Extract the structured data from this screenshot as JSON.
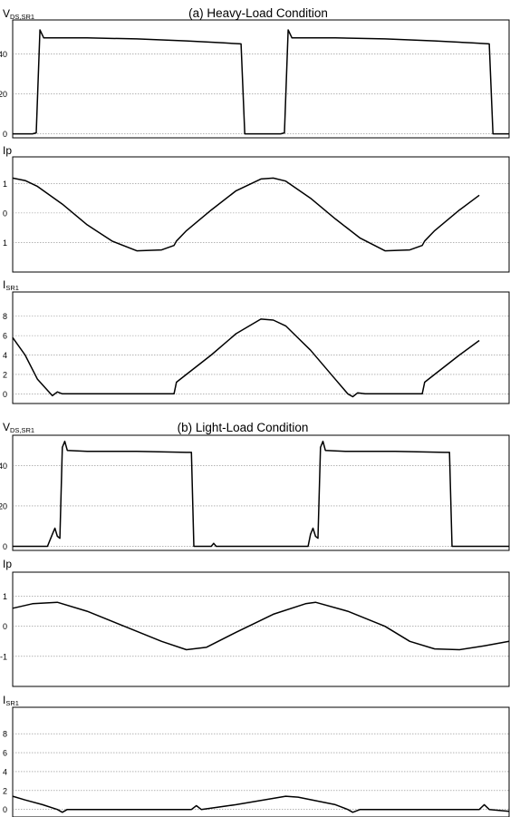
{
  "chart_data": [
    {
      "type": "line",
      "title": "(a) Heavy-Load Condition",
      "ylabel_main": "V",
      "ylabel_sub": "DS,SR1",
      "yticks": [
        {
          "v": 0,
          "label": "0"
        },
        {
          "v": 20,
          "label": "20"
        },
        {
          "v": 40,
          "label": "40"
        }
      ],
      "ylim": [
        -2,
        57
      ],
      "xlim": [
        0,
        2
      ],
      "series": [
        {
          "values": [
            [
              0,
              0
            ],
            [
              0.08,
              0
            ],
            [
              0.095,
              0.5
            ],
            [
              0.11,
              52
            ],
            [
              0.125,
              48
            ],
            [
              0.16,
              48
            ],
            [
              0.3,
              48
            ],
            [
              0.5,
              47.5
            ],
            [
              0.7,
              46.5
            ],
            [
              0.85,
              45.5
            ],
            [
              0.92,
              45
            ],
            [
              0.935,
              0
            ],
            [
              1.0,
              0
            ],
            [
              1.08,
              0
            ],
            [
              1.095,
              0.5
            ],
            [
              1.11,
              52
            ],
            [
              1.125,
              48
            ],
            [
              1.16,
              48
            ],
            [
              1.3,
              48
            ],
            [
              1.5,
              47.5
            ],
            [
              1.7,
              46.5
            ],
            [
              1.85,
              45.5
            ],
            [
              1.92,
              45
            ],
            [
              1.935,
              0
            ],
            [
              2.0,
              0
            ]
          ]
        }
      ]
    },
    {
      "type": "line",
      "ylabel_main": "Ip",
      "ylabel_sub": "",
      "yticks": [
        {
          "v": 1,
          "label": "1"
        },
        {
          "v": 0,
          "label": "0"
        },
        {
          "v": -1,
          "label": "1"
        }
      ],
      "ylim": [
        -2.0,
        1.9
      ],
      "xlim": [
        0,
        2
      ],
      "series": [
        {
          "values": [
            [
              0,
              1.18
            ],
            [
              0.05,
              1.1
            ],
            [
              0.1,
              0.9
            ],
            [
              0.2,
              0.3
            ],
            [
              0.3,
              -0.4
            ],
            [
              0.4,
              -0.95
            ],
            [
              0.5,
              -1.28
            ],
            [
              0.6,
              -1.25
            ],
            [
              0.65,
              -1.1
            ],
            [
              0.66,
              -0.95
            ],
            [
              0.7,
              -0.6
            ],
            [
              0.8,
              0.1
            ],
            [
              0.9,
              0.75
            ],
            [
              1.0,
              1.15
            ],
            [
              1.05,
              1.18
            ],
            [
              1.1,
              1.08
            ],
            [
              1.2,
              0.5
            ],
            [
              1.3,
              -0.2
            ],
            [
              1.4,
              -0.85
            ],
            [
              1.5,
              -1.28
            ],
            [
              1.6,
              -1.25
            ],
            [
              1.65,
              -1.1
            ],
            [
              1.66,
              -0.95
            ],
            [
              1.7,
              -0.6
            ],
            [
              1.8,
              0.1
            ],
            [
              1.88,
              0.6
            ]
          ]
        }
      ]
    },
    {
      "type": "line",
      "ylabel_main": "I",
      "ylabel_sub": "SR1",
      "yticks": [
        {
          "v": 0,
          "label": "0"
        },
        {
          "v": 2,
          "label": "2"
        },
        {
          "v": 4,
          "label": "4"
        },
        {
          "v": 6,
          "label": "6"
        },
        {
          "v": 8,
          "label": "8"
        }
      ],
      "ylim": [
        -1,
        10.5
      ],
      "xlim": [
        0,
        2
      ],
      "series": [
        {
          "values": [
            [
              0,
              5.8
            ],
            [
              0.05,
              4.0
            ],
            [
              0.1,
              1.5
            ],
            [
              0.16,
              -0.2
            ],
            [
              0.18,
              0.2
            ],
            [
              0.2,
              0
            ],
            [
              0.65,
              0
            ],
            [
              0.66,
              1.2
            ],
            [
              0.7,
              2.0
            ],
            [
              0.8,
              4.0
            ],
            [
              0.9,
              6.2
            ],
            [
              1.0,
              7.7
            ],
            [
              1.05,
              7.6
            ],
            [
              1.1,
              7.0
            ],
            [
              1.2,
              4.5
            ],
            [
              1.3,
              1.5
            ],
            [
              1.35,
              0
            ],
            [
              1.37,
              -0.3
            ],
            [
              1.39,
              0.1
            ],
            [
              1.42,
              0
            ],
            [
              1.65,
              0
            ],
            [
              1.66,
              1.2
            ],
            [
              1.7,
              2.0
            ],
            [
              1.8,
              4.0
            ],
            [
              1.88,
              5.5
            ]
          ]
        }
      ]
    },
    {
      "type": "line",
      "title": "(b) Light-Load Condition",
      "ylabel_main": "V",
      "ylabel_sub": "DS,SR1",
      "yticks": [
        {
          "v": 0,
          "label": "0"
        },
        {
          "v": 20,
          "label": "20"
        },
        {
          "v": 40,
          "label": "40"
        }
      ],
      "ylim": [
        -2,
        55
      ],
      "xlim": [
        0,
        2
      ],
      "series": [
        {
          "values": [
            [
              0,
              0
            ],
            [
              0.14,
              0
            ],
            [
              0.16,
              6
            ],
            [
              0.17,
              9
            ],
            [
              0.18,
              5
            ],
            [
              0.19,
              4
            ],
            [
              0.2,
              49
            ],
            [
              0.21,
              52
            ],
            [
              0.22,
              47.5
            ],
            [
              0.3,
              47
            ],
            [
              0.5,
              47
            ],
            [
              0.7,
              46.5
            ],
            [
              0.72,
              46.5
            ],
            [
              0.73,
              0
            ],
            [
              0.8,
              0
            ],
            [
              0.81,
              1.5
            ],
            [
              0.82,
              0
            ],
            [
              1.19,
              0
            ],
            [
              1.2,
              6
            ],
            [
              1.21,
              9
            ],
            [
              1.22,
              5
            ],
            [
              1.23,
              4
            ],
            [
              1.24,
              49
            ],
            [
              1.25,
              52
            ],
            [
              1.26,
              47.5
            ],
            [
              1.34,
              47
            ],
            [
              1.54,
              47
            ],
            [
              1.74,
              46.5
            ],
            [
              1.76,
              46.5
            ],
            [
              1.77,
              0
            ],
            [
              2.0,
              0
            ]
          ]
        }
      ]
    },
    {
      "type": "line",
      "ylabel_main": "Ip",
      "ylabel_sub": "",
      "yticks": [
        {
          "v": 1,
          "label": "1"
        },
        {
          "v": 0,
          "label": "0"
        },
        {
          "v": -1,
          "label": "-1"
        }
      ],
      "ylim": [
        -2.0,
        1.8
      ],
      "xlim": [
        0,
        2
      ],
      "series": [
        {
          "values": [
            [
              0,
              0.6
            ],
            [
              0.08,
              0.75
            ],
            [
              0.18,
              0.8
            ],
            [
              0.3,
              0.5
            ],
            [
              0.45,
              0
            ],
            [
              0.6,
              -0.5
            ],
            [
              0.7,
              -0.78
            ],
            [
              0.78,
              -0.7
            ],
            [
              0.9,
              -0.2
            ],
            [
              1.05,
              0.4
            ],
            [
              1.18,
              0.75
            ],
            [
              1.22,
              0.8
            ],
            [
              1.35,
              0.5
            ],
            [
              1.5,
              0
            ],
            [
              1.6,
              -0.5
            ],
            [
              1.7,
              -0.75
            ],
            [
              1.8,
              -0.78
            ],
            [
              1.9,
              -0.65
            ],
            [
              2.0,
              -0.5
            ]
          ]
        }
      ]
    },
    {
      "type": "line",
      "ylabel_main": "I",
      "ylabel_sub": "SR1",
      "yticks": [
        {
          "v": 0,
          "label": "0"
        },
        {
          "v": 2,
          "label": "2"
        },
        {
          "v": 4,
          "label": "4"
        },
        {
          "v": 6,
          "label": "6"
        },
        {
          "v": 8,
          "label": "8"
        }
      ],
      "ylim": [
        -0.8,
        10.8
      ],
      "xlim": [
        0,
        2
      ],
      "series": [
        {
          "values": [
            [
              0,
              1.4
            ],
            [
              0.05,
              1.0
            ],
            [
              0.12,
              0.5
            ],
            [
              0.18,
              0
            ],
            [
              0.2,
              -0.3
            ],
            [
              0.22,
              0
            ],
            [
              0.72,
              0
            ],
            [
              0.74,
              0.4
            ],
            [
              0.76,
              0
            ],
            [
              0.9,
              0.5
            ],
            [
              1.1,
              1.4
            ],
            [
              1.15,
              1.3
            ],
            [
              1.3,
              0.5
            ],
            [
              1.35,
              0
            ],
            [
              1.37,
              -0.3
            ],
            [
              1.4,
              0
            ],
            [
              1.88,
              0
            ],
            [
              1.9,
              0.5
            ],
            [
              1.92,
              0
            ],
            [
              2.0,
              -0.2
            ]
          ]
        }
      ]
    }
  ]
}
